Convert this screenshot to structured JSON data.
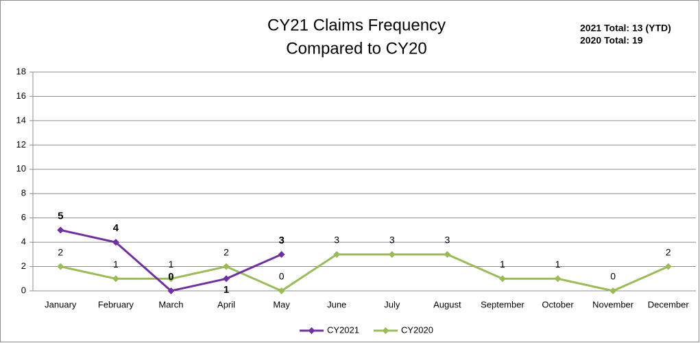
{
  "chart_data": {
    "type": "line",
    "title": [
      "CY21 Claims Frequency",
      "Compared to CY20"
    ],
    "annotations": [
      "2021 Total:  13 (YTD)",
      "2020 Total:  19"
    ],
    "categories": [
      "January",
      "February",
      "March",
      "April",
      "May",
      "June",
      "July",
      "August",
      "September",
      "October",
      "November",
      "December"
    ],
    "series": [
      {
        "name": "CY2021",
        "color": "#7030a0",
        "values": [
          5,
          4,
          0,
          1,
          3,
          null,
          null,
          null,
          null,
          null,
          null,
          null
        ]
      },
      {
        "name": "CY2020",
        "color": "#9bbb59",
        "values": [
          2,
          1,
          1,
          2,
          0,
          3,
          3,
          3,
          1,
          1,
          0,
          2
        ]
      }
    ],
    "ylim": [
      0,
      18
    ],
    "yticks": [
      0,
      2,
      4,
      6,
      8,
      10,
      12,
      14,
      16,
      18
    ],
    "grid": true,
    "legend": "bottom"
  }
}
